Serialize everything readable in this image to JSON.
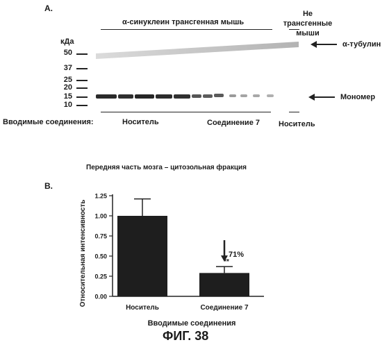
{
  "panel_a": {
    "label": "A.",
    "header_transgenic": "α-синуклеин трансгенная мышь",
    "header_nontransgenic": "Не трансгенные мыши",
    "kda_label": "кДа",
    "markers": [
      "50",
      "37",
      "25",
      "20",
      "15",
      "10"
    ],
    "annotation_tubulin": "α-тубулин",
    "annotation_monomer": "Мономер",
    "compounds_label": "Вводимые соединения:",
    "group_vehicle_1": "Носитель",
    "group_compound": "Соединение 7",
    "group_vehicle_2": "Носитель"
  },
  "panel_b": {
    "label": "B.",
    "title": "Передняя часть мозга – цитозольная фракция",
    "annotation_percent": "71%",
    "significance": "**"
  },
  "chart_data": {
    "type": "bar",
    "categories": [
      "Носитель",
      "Соединение 7"
    ],
    "values": [
      1.0,
      0.29
    ],
    "errors": [
      0.21,
      0.08
    ],
    "xlabel": "Вводимые соединения",
    "ylabel": "Относительная интенсивность",
    "ylim": [
      0,
      1.25
    ],
    "yticks": [
      "0.00",
      "0.25",
      "0.50",
      "0.75",
      "1.00",
      "1.25"
    ],
    "bar_color": "#1e1e1e"
  },
  "figure_caption": "ФИГ. 38"
}
